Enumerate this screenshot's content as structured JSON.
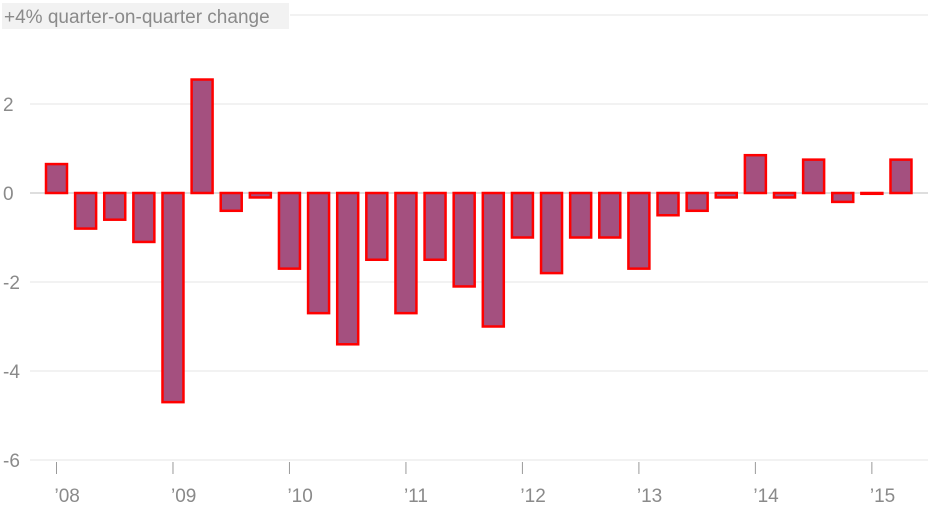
{
  "chart_data": {
    "type": "bar",
    "title": "+4% quarter-on-quarter change",
    "xlabel": "",
    "ylabel": "",
    "ylim": [
      -6,
      4
    ],
    "yticks": [
      2,
      0,
      -2,
      -4,
      -6
    ],
    "ytick_labels": [
      "2",
      "0",
      "-2",
      "-4",
      "-6"
    ],
    "x_tick_labels": [
      "’08",
      "’09",
      "’10",
      "’11",
      "’12",
      "’13",
      "’14",
      "’15"
    ],
    "grid": true,
    "legend": "none",
    "bar_fill": "#a4507f",
    "bar_stroke": "#ff0000",
    "categories": [
      "2008 Q1",
      "2008 Q2",
      "2008 Q3",
      "2008 Q4",
      "2009 Q1",
      "2009 Q2",
      "2009 Q3",
      "2009 Q4",
      "2010 Q1",
      "2010 Q2",
      "2010 Q3",
      "2010 Q4",
      "2011 Q1",
      "2011 Q2",
      "2011 Q3",
      "2011 Q4",
      "2012 Q1",
      "2012 Q2",
      "2012 Q3",
      "2012 Q4",
      "2013 Q1",
      "2013 Q2",
      "2013 Q3",
      "2013 Q4",
      "2014 Q1",
      "2014 Q2",
      "2014 Q3",
      "2014 Q4",
      "2015 Q1",
      "2015 Q2"
    ],
    "values": [
      0.65,
      -0.8,
      -0.6,
      -1.1,
      -4.7,
      2.55,
      -0.4,
      -0.1,
      -1.7,
      -2.7,
      -3.4,
      -1.5,
      -2.7,
      -1.5,
      -2.1,
      -3.0,
      -1.0,
      -1.8,
      -1.0,
      -1.0,
      -1.7,
      -0.5,
      -0.4,
      -0.1,
      0.85,
      -0.1,
      0.75,
      -0.2,
      0.0,
      0.75
    ]
  }
}
